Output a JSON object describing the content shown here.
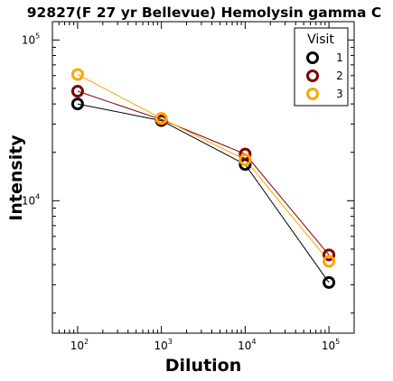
{
  "chart_data": {
    "type": "line",
    "title": "92827(F 27 yr Bellevue) Hemolysin gamma C",
    "xlabel": "Dilution",
    "ylabel": "Intensity",
    "x_scale": "log",
    "y_scale": "log",
    "xlim": [
      50,
      200000
    ],
    "ylim": [
      1500,
      130000
    ],
    "x": [
      100,
      1000,
      10000,
      100000
    ],
    "x_ticks": [
      {
        "value": 100,
        "base": "10",
        "exp": "2"
      },
      {
        "value": 1000,
        "base": "10",
        "exp": "3"
      },
      {
        "value": 10000,
        "base": "10",
        "exp": "4"
      },
      {
        "value": 100000,
        "base": "10",
        "exp": "5"
      }
    ],
    "y_ticks": [
      {
        "value": 10000,
        "base": "10",
        "exp": "4"
      },
      {
        "value": 100000,
        "base": "10",
        "exp": "5"
      }
    ],
    "legend": {
      "title": "Visit",
      "position": "top-right"
    },
    "series": [
      {
        "name": "1",
        "color": "#000000",
        "values": [
          40000,
          31500,
          16800,
          3100
        ]
      },
      {
        "name": "2",
        "color": "#800000",
        "values": [
          48000,
          32000,
          19500,
          4600
        ]
      },
      {
        "name": "3",
        "color": "#FFA500",
        "values": [
          61000,
          32500,
          18000,
          4200
        ]
      }
    ],
    "grid": false
  }
}
